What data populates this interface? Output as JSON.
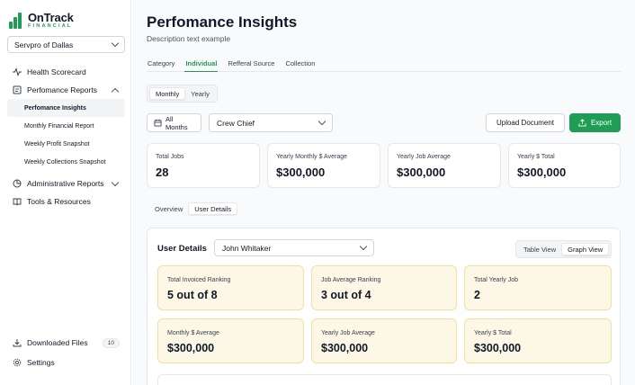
{
  "brand": {
    "name": "OnTrack",
    "sub": "FINANCIAL"
  },
  "org_select": {
    "value": "Servpro of Dallas"
  },
  "nav": {
    "health": "Health Scorecard",
    "reports": "Perfomance Reports",
    "report_items": [
      "Perfomance Insights",
      "Monthly Financial Report",
      "Weekly Profit Snapshot",
      "Weekly Collections Snapshot"
    ],
    "admin": "Administrative Reports",
    "tools": "Tools & Resources",
    "downloads": "Downloaded Files",
    "downloads_count": "10",
    "settings": "Settings"
  },
  "page": {
    "title": "Perfomance Insights",
    "description": "Description text example"
  },
  "tabs": [
    "Category",
    "Individual",
    "Refferal Source",
    "Collection"
  ],
  "period": [
    "Monthly",
    "Yearly"
  ],
  "filters": {
    "months": "All Months",
    "role": "Crew Chief"
  },
  "actions": {
    "upload": "Upload Document",
    "export": "Export"
  },
  "summary": [
    {
      "label": "Total Jobs",
      "value": "28"
    },
    {
      "label": "Yearly Monthly $ Average",
      "value": "$300,000"
    },
    {
      "label": "Yearly Job Average",
      "value": "$300,000"
    },
    {
      "label": "Yearly $ Total",
      "value": "$300,000"
    }
  ],
  "subtabs": [
    "Overview",
    "User Details"
  ],
  "user_details": {
    "title": "User Details",
    "user": "John Whitaker",
    "views": [
      "Table View",
      "Graph View"
    ],
    "metrics": [
      {
        "label": "Total Invoiced Ranking",
        "value": "5 out of 8"
      },
      {
        "label": "Job Average Ranking",
        "value": "3 out of 4"
      },
      {
        "label": "Total Yearly Job",
        "value": "2"
      },
      {
        "label": "Monthly $ Average",
        "value": "$300,000"
      },
      {
        "label": "Yearly Job Average",
        "value": "$300,000"
      },
      {
        "label": "Yearly $ Total",
        "value": "$300,000"
      }
    ]
  },
  "colors": {
    "accent": "#1f9d55",
    "highlight_card": "#fdf8e6"
  }
}
